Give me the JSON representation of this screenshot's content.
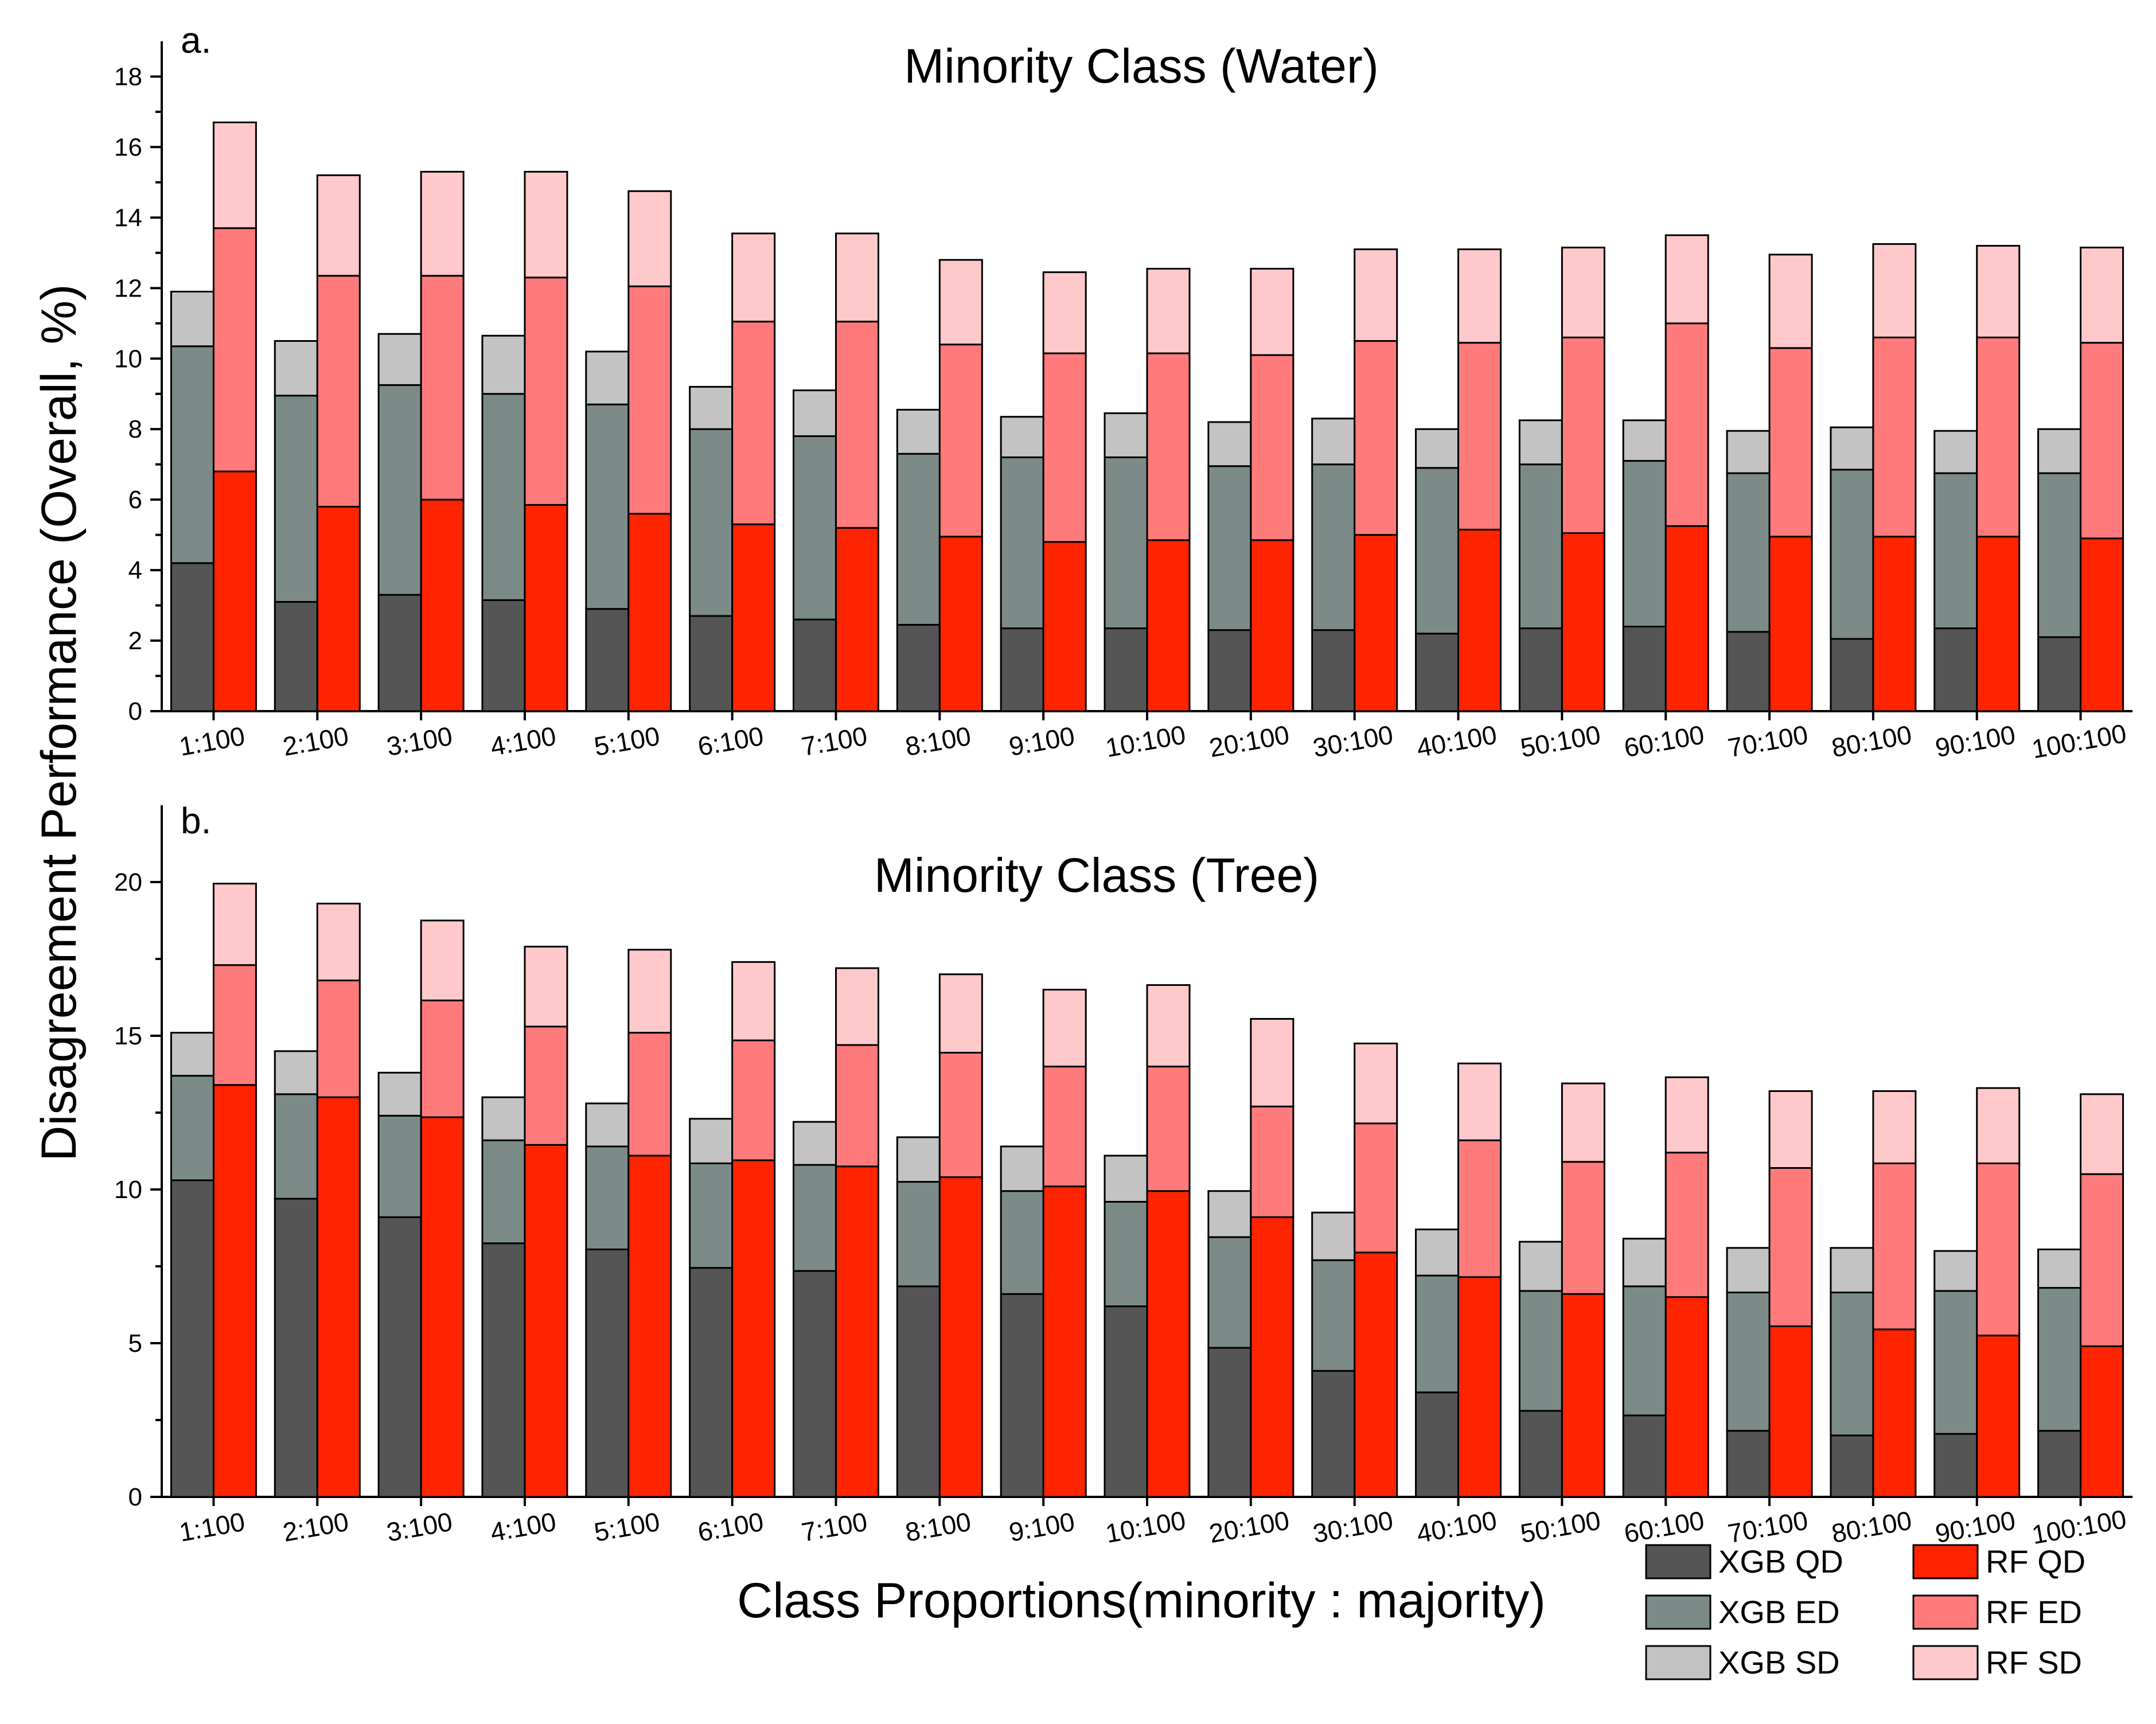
{
  "y_axis_title": "Disagreement Performance (Overall, %)",
  "x_axis_title": "Class Proportions(minority : majority)",
  "legend": [
    {
      "label": "XGB QD",
      "color": "#555555"
    },
    {
      "label": "XGB ED",
      "color": "#7c8b87"
    },
    {
      "label": "XGB SD",
      "color": "#c3c3c3"
    },
    {
      "label": "RF QD",
      "color": "#ff2400"
    },
    {
      "label": "RF ED",
      "color": "#ff7b7b"
    },
    {
      "label": "RF SD",
      "color": "#ffc9cb"
    }
  ],
  "chart_data": [
    {
      "type": "bar",
      "stacked": true,
      "panel_label": "a.",
      "title": "Minority Class (Water)",
      "categories": [
        "1:100",
        "2:100",
        "3:100",
        "4:100",
        "5:100",
        "6:100",
        "7:100",
        "8:100",
        "9:100",
        "10:100",
        "20:100",
        "30:100",
        "40:100",
        "50:100",
        "60:100",
        "70:100",
        "80:100",
        "90:100",
        "100:100"
      ],
      "ylim": [
        0,
        19
      ],
      "yticks": [
        0,
        2,
        4,
        6,
        8,
        10,
        12,
        14,
        16,
        18
      ],
      "groups": [
        {
          "name": "XGB",
          "series": [
            {
              "name": "XGB QD",
              "values": [
                4.2,
                3.1,
                3.3,
                3.15,
                2.9,
                2.7,
                2.6,
                2.45,
                2.35,
                2.35,
                2.3,
                2.3,
                2.2,
                2.35,
                2.4,
                2.25,
                2.05,
                2.35,
                2.1
              ]
            },
            {
              "name": "XGB ED",
              "values": [
                6.15,
                5.85,
                5.95,
                5.85,
                5.8,
                5.3,
                5.2,
                4.85,
                4.85,
                4.85,
                4.65,
                4.7,
                4.7,
                4.65,
                4.7,
                4.5,
                4.8,
                4.4,
                4.65
              ]
            },
            {
              "name": "XGB SD",
              "values": [
                1.55,
                1.55,
                1.45,
                1.65,
                1.5,
                1.2,
                1.3,
                1.25,
                1.15,
                1.25,
                1.25,
                1.3,
                1.1,
                1.25,
                1.15,
                1.2,
                1.2,
                1.2,
                1.25
              ]
            }
          ]
        },
        {
          "name": "RF",
          "series": [
            {
              "name": "RF QD",
              "values": [
                6.8,
                5.8,
                6.0,
                5.85,
                5.6,
                5.3,
                5.2,
                4.95,
                4.8,
                4.85,
                4.85,
                5.0,
                5.15,
                5.05,
                5.25,
                4.95,
                4.95,
                4.95,
                4.9
              ]
            },
            {
              "name": "RF ED",
              "values": [
                6.9,
                6.55,
                6.35,
                6.45,
                6.45,
                5.75,
                5.85,
                5.45,
                5.35,
                5.3,
                5.25,
                5.5,
                5.3,
                5.55,
                5.75,
                5.35,
                5.65,
                5.65,
                5.55
              ]
            },
            {
              "name": "RF SD",
              "values": [
                3.0,
                2.85,
                2.95,
                3.0,
                2.7,
                2.5,
                2.5,
                2.4,
                2.3,
                2.4,
                2.45,
                2.6,
                2.65,
                2.55,
                2.5,
                2.65,
                2.65,
                2.6,
                2.7
              ]
            }
          ]
        }
      ]
    },
    {
      "type": "bar",
      "stacked": true,
      "panel_label": "b.",
      "title": "Minority Class (Tree)",
      "categories": [
        "1:100",
        "2:100",
        "3:100",
        "4:100",
        "5:100",
        "6:100",
        "7:100",
        "8:100",
        "9:100",
        "10:100",
        "20:100",
        "30:100",
        "40:100",
        "50:100",
        "60:100",
        "70:100",
        "80:100",
        "90:100",
        "100:100"
      ],
      "ylim": [
        0,
        22.5
      ],
      "yticks": [
        0,
        5,
        10,
        15,
        20
      ],
      "groups": [
        {
          "name": "XGB",
          "series": [
            {
              "name": "XGB QD",
              "values": [
                10.3,
                9.7,
                9.1,
                8.25,
                8.05,
                7.45,
                7.35,
                6.85,
                6.6,
                6.2,
                4.85,
                4.1,
                3.4,
                2.8,
                2.65,
                2.15,
                2.0,
                2.05,
                2.15
              ]
            },
            {
              "name": "XGB ED",
              "values": [
                3.4,
                3.4,
                3.3,
                3.35,
                3.35,
                3.4,
                3.45,
                3.4,
                3.35,
                3.4,
                3.6,
                3.6,
                3.8,
                3.9,
                4.2,
                4.5,
                4.65,
                4.65,
                4.65
              ]
            },
            {
              "name": "XGB SD",
              "values": [
                1.4,
                1.4,
                1.4,
                1.4,
                1.4,
                1.45,
                1.4,
                1.45,
                1.45,
                1.5,
                1.5,
                1.55,
                1.5,
                1.6,
                1.55,
                1.45,
                1.45,
                1.3,
                1.25
              ]
            }
          ]
        },
        {
          "name": "RF",
          "series": [
            {
              "name": "RF QD",
              "values": [
                13.4,
                13.0,
                12.35,
                11.45,
                11.1,
                10.95,
                10.75,
                10.4,
                10.1,
                9.95,
                9.1,
                7.95,
                7.15,
                6.6,
                6.5,
                5.55,
                5.45,
                5.25,
                4.9
              ]
            },
            {
              "name": "RF ED",
              "values": [
                3.9,
                3.8,
                3.8,
                3.85,
                4.0,
                3.9,
                3.95,
                4.05,
                3.9,
                4.05,
                3.6,
                4.2,
                4.45,
                4.3,
                4.7,
                5.15,
                5.4,
                5.6,
                5.6
              ]
            },
            {
              "name": "RF SD",
              "values": [
                2.65,
                2.5,
                2.6,
                2.6,
                2.7,
                2.55,
                2.5,
                2.55,
                2.5,
                2.65,
                2.85,
                2.6,
                2.5,
                2.55,
                2.45,
                2.5,
                2.35,
                2.45,
                2.6
              ]
            }
          ]
        }
      ]
    }
  ]
}
